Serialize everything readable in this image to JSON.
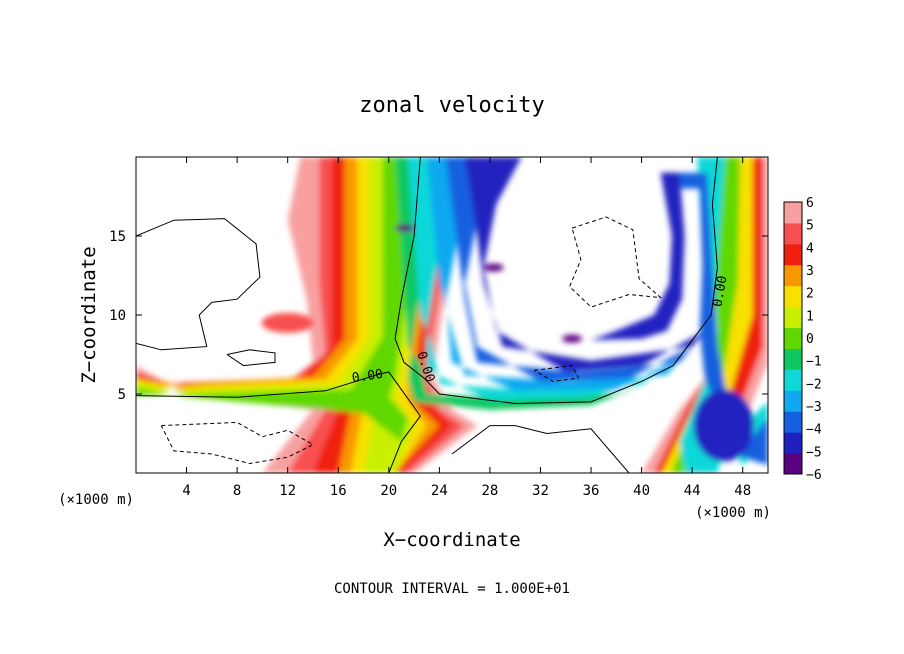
{
  "chart_data": {
    "type": "heatmap",
    "title": "zonal velocity",
    "xlabel": "X−coordinate",
    "ylabel": "Z−coordinate",
    "x_unit_label": "(×1000 m)",
    "y_unit_label": "(×1000 m)",
    "xlim": [
      0,
      50
    ],
    "ylim": [
      0,
      20
    ],
    "x_ticks": [
      4,
      8,
      12,
      16,
      20,
      24,
      28,
      32,
      36,
      40,
      44,
      48
    ],
    "y_ticks": [
      5,
      10,
      15
    ],
    "x_tick_labels": [
      "4",
      "8",
      "12",
      "16",
      "20",
      "24",
      "28",
      "32",
      "36",
      "40",
      "44",
      "48"
    ],
    "y_tick_labels": [
      "5",
      "10",
      "15"
    ],
    "colorbar": {
      "min": -6,
      "max": 6,
      "levels": [
        6,
        5,
        4,
        3,
        2,
        1,
        0,
        -1,
        -2,
        -3,
        -4,
        -5,
        -6
      ],
      "level_labels": [
        "6",
        "5",
        "4",
        "3",
        "2",
        "1",
        "0",
        "−1",
        "−2",
        "−3",
        "−4",
        "−5",
        "−6"
      ],
      "colors": [
        "#5a0080",
        "#2020c0",
        "#1560e0",
        "#10a8f0",
        "#10d8d8",
        "#10c860",
        "#60d800",
        "#c8f000",
        "#f8e000",
        "#f89800",
        "#f02010",
        "#f85050",
        "#f8a0a0"
      ]
    },
    "contour_labels": [
      "0.00",
      "0.00",
      "0.00"
    ],
    "contour_interval_text": "CONTOUR INTERVAL = 1.000E+01"
  }
}
